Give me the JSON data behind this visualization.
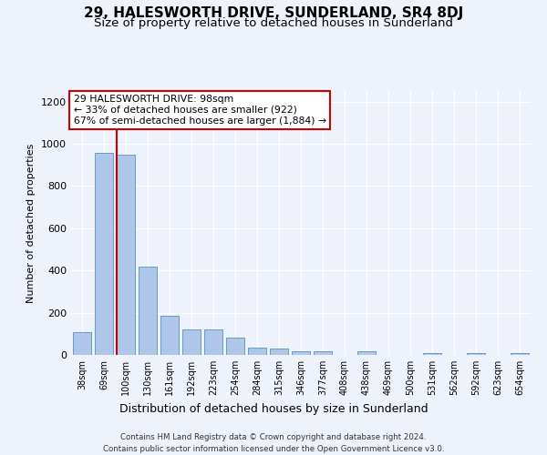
{
  "title1": "29, HALESWORTH DRIVE, SUNDERLAND, SR4 8DJ",
  "title2": "Size of property relative to detached houses in Sunderland",
  "xlabel": "Distribution of detached houses by size in Sunderland",
  "ylabel": "Number of detached properties",
  "categories": [
    "38sqm",
    "69sqm",
    "100sqm",
    "130sqm",
    "161sqm",
    "192sqm",
    "223sqm",
    "254sqm",
    "284sqm",
    "315sqm",
    "346sqm",
    "377sqm",
    "408sqm",
    "438sqm",
    "469sqm",
    "500sqm",
    "531sqm",
    "562sqm",
    "592sqm",
    "623sqm",
    "654sqm"
  ],
  "values": [
    108,
    955,
    950,
    420,
    185,
    120,
    120,
    80,
    35,
    30,
    18,
    18,
    0,
    18,
    0,
    0,
    8,
    0,
    8,
    0,
    8
  ],
  "bar_color": "#aec6e8",
  "bar_edge_color": "#5a8fc4",
  "annotation_box_text": "29 HALESWORTH DRIVE: 98sqm\n← 33% of detached houses are smaller (922)\n67% of semi-detached houses are larger (1,884) →",
  "box_edge_color": "#cc0000",
  "footer_line1": "Contains HM Land Registry data © Crown copyright and database right 2024.",
  "footer_line2": "Contains public sector information licensed under the Open Government Licence v3.0.",
  "ylim": [
    0,
    1250
  ],
  "yticks": [
    0,
    200,
    400,
    600,
    800,
    1000,
    1200
  ],
  "background_color": "#eef2fa",
  "grid_color": "#ffffff",
  "title1_fontsize": 11,
  "title2_fontsize": 9.5,
  "red_line_index": 1.575
}
